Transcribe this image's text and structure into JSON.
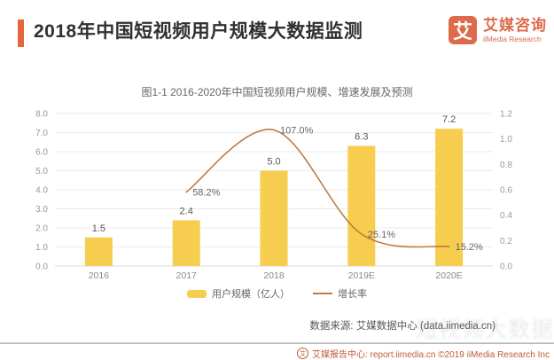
{
  "header": {
    "title": "2018年中国短视频用户规模大数据监测",
    "accent_color": "#e2663f",
    "logo": {
      "mark": "艾",
      "name_cn": "艾媒咨询",
      "name_en": "iiMedia Research"
    }
  },
  "chart_data": {
    "type": "bar",
    "title": "图1-1 2016-2020年中国短视频用户规模、增速发展及预测",
    "categories": [
      "2016",
      "2017",
      "2018",
      "2019E",
      "2020E"
    ],
    "series": [
      {
        "name": "用户规模（亿人）",
        "type": "bar",
        "axis": "left",
        "color": "#f7cd4f",
        "values": [
          1.5,
          2.4,
          5.0,
          6.3,
          7.2
        ],
        "labels": [
          "1.5",
          "2.4",
          "5.0",
          "6.3",
          "7.2"
        ]
      },
      {
        "name": "增长率",
        "type": "line",
        "axis": "right",
        "color": "#bf7b42",
        "values": [
          null,
          0.582,
          1.07,
          0.251,
          0.152
        ],
        "labels": [
          "",
          "58.2%",
          "107.0%",
          "25.1%",
          "15.2%"
        ]
      }
    ],
    "left_axis": {
      "min": 0,
      "max": 8,
      "ticks": [
        "0.0",
        "1.0",
        "2.0",
        "3.0",
        "4.0",
        "5.0",
        "6.0",
        "7.0",
        "8.0"
      ]
    },
    "right_axis": {
      "min": 0,
      "max": 1.2,
      "ticks": [
        "0.0",
        "0.2",
        "0.4",
        "0.6",
        "0.8",
        "1.0",
        "1.2"
      ]
    },
    "grid": true,
    "legend_position": "bottom"
  },
  "source_note": "数据来源: 艾媒数据中心 (data.iimedia.cn)",
  "watermark": "短视频大数据",
  "footer": {
    "icon": "艾",
    "text": "艾媒报告中心: report.iimedia.cn ©2019 iiMedia Research Inc"
  }
}
